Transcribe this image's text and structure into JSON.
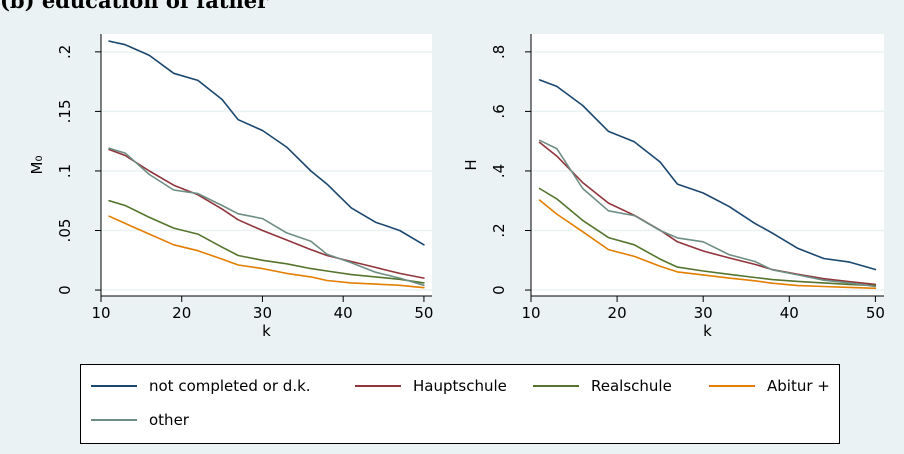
{
  "heading": "(b) education of father",
  "colors": {
    "background": "#eaf2f3",
    "panel": "#ffffff",
    "series": [
      "#1a476f",
      "#90353b",
      "#55752f",
      "#e37e00",
      "#6e8e84"
    ]
  },
  "chart_data": [
    {
      "type": "line",
      "xlabel": "k",
      "ylabel": "M₀",
      "xlim": [
        10,
        51
      ],
      "ylim": [
        -0.005,
        0.215
      ],
      "xticks": [
        10,
        20,
        30,
        40,
        50
      ],
      "yticks": [
        0,
        0.05,
        0.1,
        0.15,
        0.2
      ],
      "ytick_labels": [
        "0",
        ".05",
        ".1",
        ".15",
        ".2"
      ],
      "grid": true,
      "x": [
        11,
        13,
        16,
        19,
        22,
        25,
        27,
        30,
        33,
        36,
        38,
        41,
        44,
        47,
        50
      ],
      "series": [
        {
          "name": "not completed or d.k.",
          "values": [
            0.209,
            0.206,
            0.197,
            0.182,
            0.176,
            0.16,
            0.143,
            0.134,
            0.12,
            0.1,
            0.089,
            0.069,
            0.057,
            0.05,
            0.038
          ]
        },
        {
          "name": "Hauptschule",
          "values": [
            0.118,
            0.113,
            0.1,
            0.088,
            0.08,
            0.068,
            0.059,
            0.05,
            0.042,
            0.034,
            0.029,
            0.024,
            0.019,
            0.014,
            0.01
          ]
        },
        {
          "name": "Realschule",
          "values": [
            0.075,
            0.071,
            0.061,
            0.052,
            0.047,
            0.036,
            0.029,
            0.025,
            0.022,
            0.018,
            0.016,
            0.013,
            0.011,
            0.009,
            0.006
          ]
        },
        {
          "name": "Abitur +",
          "values": [
            0.062,
            0.056,
            0.047,
            0.038,
            0.033,
            0.026,
            0.021,
            0.018,
            0.014,
            0.011,
            0.008,
            0.006,
            0.005,
            0.004,
            0.002
          ]
        },
        {
          "name": "other",
          "values": [
            0.119,
            0.115,
            0.097,
            0.084,
            0.081,
            0.071,
            0.064,
            0.06,
            0.048,
            0.041,
            0.03,
            0.023,
            0.015,
            0.01,
            0.004
          ]
        }
      ]
    },
    {
      "type": "line",
      "xlabel": "k",
      "ylabel": "H",
      "xlim": [
        10,
        51
      ],
      "ylim": [
        -0.02,
        0.86
      ],
      "xticks": [
        10,
        20,
        30,
        40,
        50
      ],
      "yticks": [
        0,
        0.2,
        0.4,
        0.6,
        0.8
      ],
      "ytick_labels": [
        "0",
        ".2",
        ".4",
        ".6",
        ".8"
      ],
      "grid": true,
      "x": [
        11,
        13,
        16,
        19,
        22,
        25,
        27,
        30,
        33,
        36,
        38,
        41,
        44,
        47,
        50
      ],
      "series": [
        {
          "name": "not completed or d.k.",
          "values": [
            0.706,
            0.684,
            0.62,
            0.533,
            0.498,
            0.43,
            0.356,
            0.326,
            0.281,
            0.224,
            0.192,
            0.14,
            0.106,
            0.094,
            0.069
          ]
        },
        {
          "name": "Hauptschule",
          "values": [
            0.496,
            0.45,
            0.361,
            0.292,
            0.251,
            0.201,
            0.162,
            0.131,
            0.108,
            0.086,
            0.069,
            0.053,
            0.038,
            0.028,
            0.019
          ]
        },
        {
          "name": "Realschule",
          "values": [
            0.341,
            0.306,
            0.234,
            0.176,
            0.152,
            0.104,
            0.077,
            0.064,
            0.053,
            0.042,
            0.035,
            0.029,
            0.024,
            0.019,
            0.015
          ]
        },
        {
          "name": "Abitur +",
          "values": [
            0.302,
            0.255,
            0.196,
            0.136,
            0.113,
            0.08,
            0.061,
            0.051,
            0.04,
            0.031,
            0.023,
            0.015,
            0.012,
            0.009,
            0.006
          ]
        },
        {
          "name": "other",
          "values": [
            0.503,
            0.475,
            0.341,
            0.266,
            0.25,
            0.2,
            0.175,
            0.162,
            0.119,
            0.096,
            0.068,
            0.051,
            0.033,
            0.024,
            0.012
          ]
        }
      ]
    }
  ]
}
